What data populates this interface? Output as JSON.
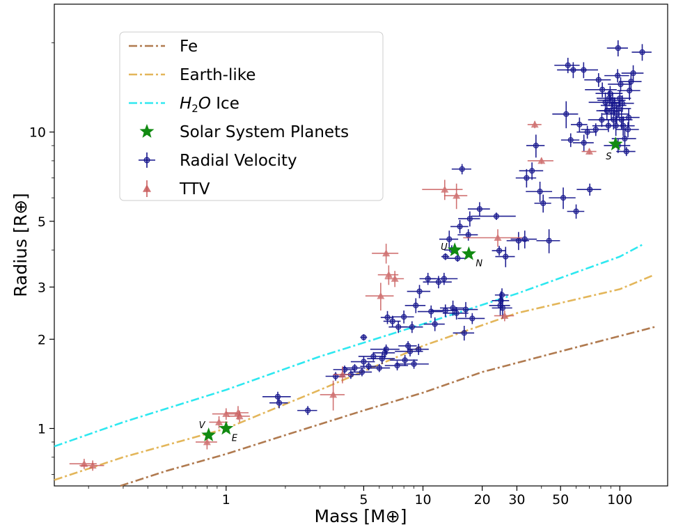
{
  "chart_data": {
    "type": "scatter",
    "xlabel": "Mass [M⊕]",
    "ylabel": "Radius [R⊕]",
    "xscale": "log",
    "yscale": "log",
    "xlim": [
      0.134,
      175
    ],
    "ylim": [
      0.64,
      27
    ],
    "x_ticks": [
      1,
      5,
      10,
      20,
      30,
      50,
      100
    ],
    "x_tick_labels": [
      "1",
      "5",
      "10",
      "20",
      "30",
      "50",
      "100"
    ],
    "y_ticks": [
      1,
      2,
      3,
      5,
      10
    ],
    "y_tick_labels": [
      "1",
      "2",
      "3",
      "5",
      "10"
    ],
    "grid": false,
    "legend": {
      "placement": "top-left",
      "entries": [
        {
          "label": "Fe",
          "style": "dashdot",
          "color": "#b07a4f"
        },
        {
          "label": "Earth-like",
          "style": "dashdot",
          "color": "#e3b65a"
        },
        {
          "label": "H2O Ice",
          "style": "dashdot",
          "color": "#2ee8f0"
        },
        {
          "label": "Solar System Planets",
          "style": "star",
          "color": "#118a11"
        },
        {
          "label": "Radial Velocity",
          "style": "errorbar-circle",
          "color": "#14148c"
        },
        {
          "label": "TTV",
          "style": "errorbar-triangle",
          "color": "#c85a5a"
        }
      ]
    },
    "lines": [
      {
        "name": "Fe",
        "color": "#b07a4f",
        "points": [
          [
            0.29,
            0.64
          ],
          [
            0.5,
            0.72
          ],
          [
            1,
            0.82
          ],
          [
            2,
            0.95
          ],
          [
            5,
            1.15
          ],
          [
            10,
            1.32
          ],
          [
            20,
            1.55
          ],
          [
            50,
            1.82
          ],
          [
            100,
            2.05
          ],
          [
            150,
            2.2
          ]
        ]
      },
      {
        "name": "Earth-like",
        "color": "#e3b65a",
        "points": [
          [
            0.134,
            0.67
          ],
          [
            0.3,
            0.8
          ],
          [
            1,
            1.0
          ],
          [
            3,
            1.35
          ],
          [
            10,
            1.9
          ],
          [
            30,
            2.45
          ],
          [
            100,
            2.95
          ],
          [
            150,
            3.3
          ]
        ]
      },
      {
        "name": "H2O Ice",
        "color": "#2ee8f0",
        "points": [
          [
            0.134,
            0.87
          ],
          [
            0.3,
            1.05
          ],
          [
            1,
            1.35
          ],
          [
            3,
            1.75
          ],
          [
            10,
            2.25
          ],
          [
            30,
            2.85
          ],
          [
            100,
            3.8
          ],
          [
            133,
            4.2
          ]
        ]
      }
    ],
    "solar_system": [
      {
        "label": "V",
        "x": 0.815,
        "y": 0.95
      },
      {
        "label": "E",
        "x": 1.0,
        "y": 1.0
      },
      {
        "label": "U",
        "x": 14.5,
        "y": 4.0
      },
      {
        "label": "N",
        "x": 17.1,
        "y": 3.88
      },
      {
        "label": "S",
        "x": 95.2,
        "y": 9.1
      }
    ],
    "series": [
      {
        "name": "Radial Velocity",
        "marker": "circle",
        "color": "#14148c",
        "points": [
          [
            1.83,
            1.28,
            0.3,
            0.05
          ],
          [
            1.86,
            1.22,
            0.2,
            0.05
          ],
          [
            2.6,
            1.15,
            0.3,
            0.04
          ],
          [
            3.6,
            1.5,
            0.4,
            0.05
          ],
          [
            4.0,
            1.58,
            0.5,
            0.05
          ],
          [
            4.3,
            1.52,
            0.5,
            0.05
          ],
          [
            4.5,
            1.6,
            0.6,
            0.05
          ],
          [
            4.9,
            1.55,
            0.6,
            0.05
          ],
          [
            5.0,
            1.68,
            0.7,
            0.07
          ],
          [
            5.0,
            2.03,
            0.2,
            0.05
          ],
          [
            5.3,
            1.62,
            0.5,
            0.05
          ],
          [
            5.6,
            1.75,
            0.9,
            0.06
          ],
          [
            6.0,
            1.6,
            0.8,
            0.05
          ],
          [
            6.2,
            1.72,
            1.0,
            0.07
          ],
          [
            6.4,
            1.8,
            0.8,
            0.07
          ],
          [
            6.5,
            1.85,
            1.1,
            0.07
          ],
          [
            6.6,
            2.37,
            0.5,
            0.12
          ],
          [
            7.0,
            2.3,
            0.7,
            0.1
          ],
          [
            7.4,
            1.63,
            1.0,
            0.06
          ],
          [
            7.5,
            2.2,
            0.8,
            0.1
          ],
          [
            8.0,
            2.38,
            1.0,
            0.12
          ],
          [
            8.1,
            1.7,
            1.3,
            0.07
          ],
          [
            8.4,
            1.9,
            0.9,
            0.07
          ],
          [
            8.6,
            1.82,
            1.4,
            0.07
          ],
          [
            8.8,
            2.2,
            1.2,
            0.1
          ],
          [
            9.0,
            1.65,
            1.7,
            0.06
          ],
          [
            9.2,
            2.6,
            1.1,
            0.15
          ],
          [
            9.5,
            1.85,
            1.2,
            0.08
          ],
          [
            9.6,
            2.9,
            1.3,
            0.15
          ],
          [
            10.6,
            3.2,
            1.0,
            0.15
          ],
          [
            11.0,
            2.48,
            1.6,
            0.12
          ],
          [
            11.5,
            2.25,
            1.4,
            0.12
          ],
          [
            12.0,
            3.12,
            2.0,
            0.15
          ],
          [
            12.8,
            3.2,
            2.2,
            0.15
          ],
          [
            13.0,
            2.5,
            2.0,
            0.12
          ],
          [
            13.0,
            3.8,
            0.6,
            0.1
          ],
          [
            13.6,
            4.35,
            1.5,
            0.3
          ],
          [
            14.0,
            4.0,
            1.2,
            0.15
          ],
          [
            14.2,
            2.55,
            2.0,
            0.15
          ],
          [
            14.8,
            2.45,
            2.2,
            0.12
          ],
          [
            15.0,
            3.75,
            1.7,
            0.1
          ],
          [
            15.4,
            4.8,
            1.6,
            0.25
          ],
          [
            15.8,
            7.5,
            1.8,
            0.3
          ],
          [
            16.2,
            2.1,
            2.0,
            0.12
          ],
          [
            16.5,
            2.52,
            2.5,
            0.15
          ],
          [
            17.0,
            4.5,
            2.0,
            0.2
          ],
          [
            17.3,
            5.1,
            2.2,
            0.3
          ],
          [
            17.8,
            2.35,
            2.8,
            0.1
          ],
          [
            19.4,
            5.5,
            2.5,
            0.3
          ],
          [
            23.6,
            5.2,
            6.0,
            0.15
          ],
          [
            24.4,
            3.98,
            2.0,
            0.15
          ],
          [
            24.7,
            2.6,
            3.0,
            0.2
          ],
          [
            24.9,
            2.7,
            2.5,
            0.2
          ],
          [
            25.2,
            2.82,
            2.0,
            0.15
          ],
          [
            25.4,
            2.55,
            3.0,
            0.2
          ],
          [
            26.3,
            3.8,
            3.0,
            0.3
          ],
          [
            30.6,
            4.3,
            4.0,
            0.3
          ],
          [
            32.9,
            4.35,
            5.0,
            0.3
          ],
          [
            33.6,
            7.0,
            4.0,
            0.5
          ],
          [
            35.8,
            7.4,
            5.0,
            0.5
          ],
          [
            37.5,
            9.0,
            4.0,
            0.8
          ],
          [
            39.3,
            6.3,
            6.0,
            0.5
          ],
          [
            40.8,
            5.75,
            4.0,
            0.4
          ],
          [
            43.7,
            4.3,
            6.0,
            0.4
          ],
          [
            51.6,
            6.0,
            8.0,
            0.5
          ],
          [
            53.4,
            11.5,
            8.0,
            1.2
          ],
          [
            54.5,
            16.8,
            8.0,
            1.0
          ],
          [
            56.3,
            9.4,
            6.0,
            0.5
          ],
          [
            58.0,
            16.2,
            10.0,
            1.0
          ],
          [
            60.0,
            5.4,
            6.0,
            0.3
          ],
          [
            62.4,
            10.6,
            6.0,
            0.6
          ],
          [
            65.5,
            16.2,
            12.0,
            1.0
          ],
          [
            65.7,
            9.2,
            8.0,
            0.6
          ],
          [
            68.4,
            10.0,
            8.0,
            0.5
          ],
          [
            70.4,
            6.4,
            10.0,
            0.3
          ],
          [
            75.5,
            10.2,
            12.0,
            0.5
          ],
          [
            78.0,
            15.0,
            12.0,
            0.8
          ],
          [
            81.0,
            11.0,
            12.0,
            0.6
          ],
          [
            81.5,
            13.9,
            15.0,
            0.8
          ],
          [
            84.5,
            12.6,
            15.0,
            1.0
          ],
          [
            86.0,
            11.8,
            10.0,
            0.8
          ],
          [
            87.5,
            10.5,
            15.0,
            0.5
          ],
          [
            88.3,
            13.0,
            12.0,
            0.8
          ],
          [
            89.3,
            13.5,
            14.0,
            0.8
          ],
          [
            90.5,
            11.8,
            12.0,
            0.8
          ],
          [
            92.0,
            12.8,
            15.0,
            0.8
          ],
          [
            93.0,
            11.0,
            15.0,
            0.8
          ],
          [
            94.0,
            12.3,
            14.0,
            0.8
          ],
          [
            95.5,
            10.5,
            14.0,
            0.8
          ],
          [
            96.5,
            11.5,
            15.0,
            0.8
          ],
          [
            97.5,
            15.5,
            14.0,
            0.8
          ],
          [
            98.0,
            9.0,
            15.0,
            0.5
          ],
          [
            99.0,
            12.0,
            15.0,
            0.8
          ],
          [
            100.0,
            13.0,
            14.0,
            0.8
          ],
          [
            101.0,
            14.5,
            14.0,
            0.8
          ],
          [
            102.0,
            11.0,
            14.0,
            0.8
          ],
          [
            103.0,
            12.5,
            15.0,
            0.8
          ],
          [
            104.0,
            10.5,
            15.0,
            0.8
          ],
          [
            106.0,
            9.5,
            15.0,
            0.8
          ],
          [
            108.0,
            8.6,
            12.0,
            0.3
          ],
          [
            110.0,
            10.2,
            15.0,
            0.6
          ],
          [
            111.0,
            11.2,
            15.0,
            0.8
          ],
          [
            112.0,
            13.8,
            15.0,
            1.0
          ],
          [
            114.0,
            14.8,
            15.0,
            1.0
          ],
          [
            117.0,
            15.8,
            15.0,
            1.0
          ],
          [
            98.0,
            19.2,
            12.0,
            1.2
          ],
          [
            130.0,
            18.6,
            15.0,
            1.2
          ]
        ]
      },
      {
        "name": "TTV",
        "marker": "triangle",
        "color": "#c85a5a",
        "points": [
          [
            0.19,
            0.76,
            0.03,
            0.03
          ],
          [
            0.21,
            0.75,
            0.03,
            0.03
          ],
          [
            0.8,
            0.9,
            0.1,
            0.05
          ],
          [
            0.92,
            1.05,
            0.1,
            0.05
          ],
          [
            1.0,
            1.12,
            0.15,
            0.05
          ],
          [
            1.15,
            1.13,
            0.15,
            0.06
          ],
          [
            1.17,
            1.1,
            0.15,
            0.05
          ],
          [
            3.5,
            1.3,
            0.5,
            0.15
          ],
          [
            3.9,
            1.52,
            0.4,
            0.1
          ],
          [
            6.1,
            2.8,
            1.0,
            0.3
          ],
          [
            6.5,
            3.9,
            1.0,
            0.3
          ],
          [
            6.7,
            3.3,
            0.8,
            0.25
          ],
          [
            7.2,
            3.2,
            0.8,
            0.2
          ],
          [
            12.9,
            6.4,
            3.0,
            0.5
          ],
          [
            14.8,
            6.1,
            2.0,
            0.6
          ],
          [
            24.0,
            4.4,
            8.0,
            0.3
          ],
          [
            26.0,
            2.4,
            3.0,
            0.1
          ],
          [
            37.0,
            10.6,
            3.0,
            0.3
          ],
          [
            40.0,
            8.0,
            6.0,
            0.2
          ],
          [
            70.0,
            8.6,
            6.0,
            0.2
          ]
        ]
      }
    ]
  }
}
